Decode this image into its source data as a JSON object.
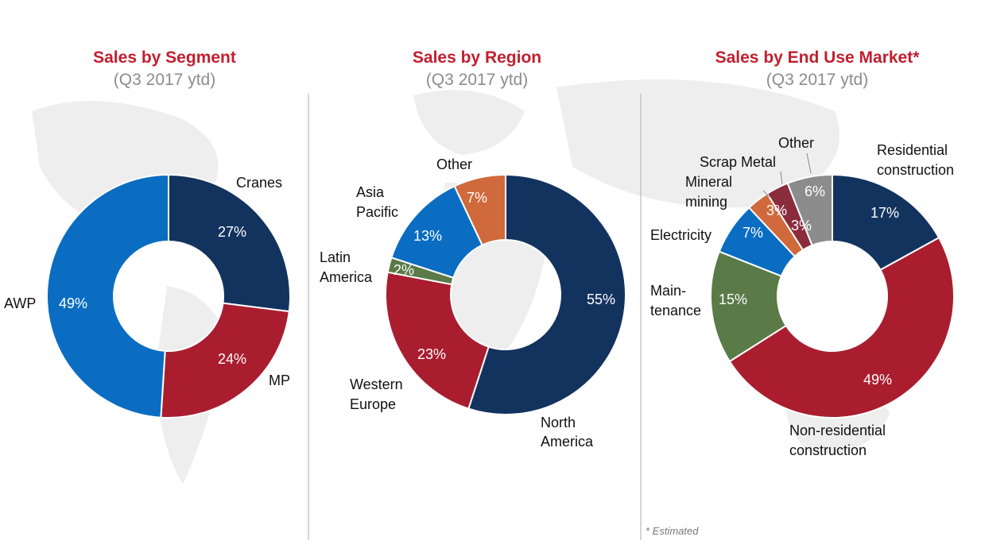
{
  "theme": {
    "title_color": "#c0202f",
    "subtitle_color": "#8c8c8c",
    "divider_color": "#b9b9b9",
    "slice_border": "#ffffff"
  },
  "footnote": "* Estimated",
  "chart_data": [
    {
      "type": "pie",
      "title": "Sales by Segment",
      "subtitle": "(Q3 2017 ytd)",
      "slices": [
        {
          "name": "Cranes",
          "value": 27,
          "label": "27%",
          "color": "#13335f",
          "label_color": "#ffffff"
        },
        {
          "name": "MP",
          "value": 24,
          "label": "24%",
          "color": "#a91d2f",
          "label_color": "#ffffff"
        },
        {
          "name": "AWP",
          "value": 49,
          "label": "49%",
          "color": "#0a6dc2",
          "label_color": "#ffffff"
        }
      ]
    },
    {
      "type": "pie",
      "title": "Sales by Region",
      "subtitle": "(Q3 2017 ytd)",
      "slices": [
        {
          "name": "North America",
          "value": 55,
          "label": "55%",
          "color": "#13335f",
          "label_color": "#ffffff"
        },
        {
          "name": "Western Europe",
          "value": 23,
          "label": "23%",
          "color": "#a91d2f",
          "label_color": "#ffffff"
        },
        {
          "name": "Latin America",
          "value": 2,
          "label": "2%",
          "color": "#5a7a48",
          "label_color": "#ffffff"
        },
        {
          "name": "Asia Pacific",
          "value": 13,
          "label": "13%",
          "color": "#0a6dc2",
          "label_color": "#ffffff"
        },
        {
          "name": "Other",
          "value": 7,
          "label": "7%",
          "color": "#d0693b",
          "label_color": "#ffffff"
        }
      ]
    },
    {
      "type": "pie",
      "title": "Sales by End Use Market*",
      "subtitle": "(Q3 2017 ytd)",
      "slices": [
        {
          "name": "Residential construction",
          "value": 17,
          "label": "17%",
          "color": "#13335f",
          "label_color": "#ffffff"
        },
        {
          "name": "Non-residential construction",
          "value": 49,
          "label": "49%",
          "color": "#a91d2f",
          "label_color": "#ffffff"
        },
        {
          "name": "Main- tenance",
          "value": 15,
          "label": "15%",
          "color": "#5a7a48",
          "label_color": "#ffffff"
        },
        {
          "name": "Electricity",
          "value": 7,
          "label": "7%",
          "color": "#0a6dc2",
          "label_color": "#ffffff"
        },
        {
          "name": "Mineral mining",
          "value": 3,
          "label": "3%",
          "color": "#d0693b",
          "label_color": "#ffffff"
        },
        {
          "name": "Scrap Metal",
          "value": 3,
          "label": "3%",
          "color": "#8a2c3c",
          "label_color": "#ffffff"
        },
        {
          "name": "Other",
          "value": 6,
          "label": "6%",
          "color": "#8c8c8c",
          "label_color": "#ffffff"
        }
      ]
    }
  ]
}
